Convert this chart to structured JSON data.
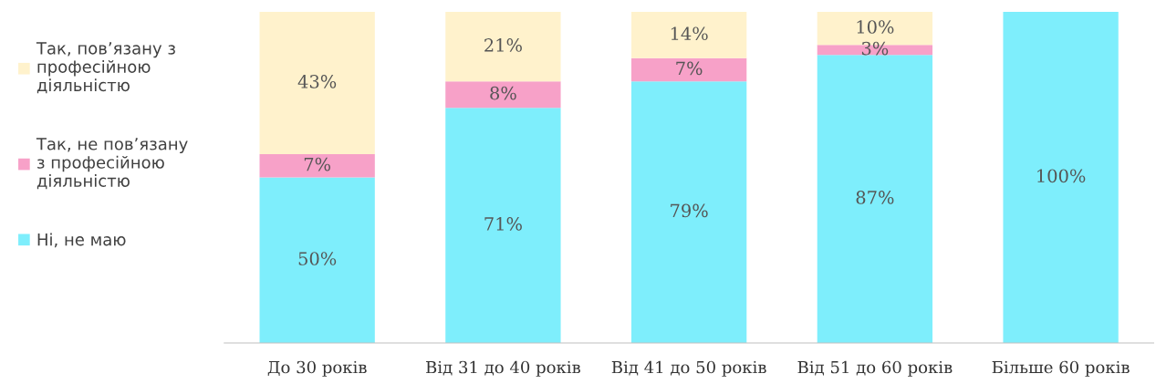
{
  "chart_data": {
    "type": "bar",
    "stacked": true,
    "categories": [
      "До 30 років",
      "Від 31 до 40 років",
      "Від 41 до 50 років",
      "Від 51 до 60 років",
      "Більше 60 років"
    ],
    "series": [
      {
        "name": "Ні, не маю",
        "color": "#7eeefc",
        "values": [
          50,
          71,
          79,
          87,
          100
        ],
        "value_labels": [
          "50%",
          "71%",
          "79%",
          "87%",
          "100%"
        ]
      },
      {
        "name": "Так, не пов’язану\nз професійною\nдіяльністю",
        "color": "#f7a1c8",
        "values": [
          7,
          8,
          7,
          3,
          null
        ],
        "value_labels": [
          "7%",
          "8%",
          "7%",
          "3%",
          null
        ]
      },
      {
        "name": "Так, пов’язану з\nпрофесійною\nдіяльністю",
        "color": "#fff2cc",
        "values": [
          43,
          21,
          14,
          10,
          null
        ],
        "value_labels": [
          "43%",
          "21%",
          "14%",
          "10%",
          null
        ]
      }
    ],
    "tick_labels": "x",
    "legend": "left"
  }
}
